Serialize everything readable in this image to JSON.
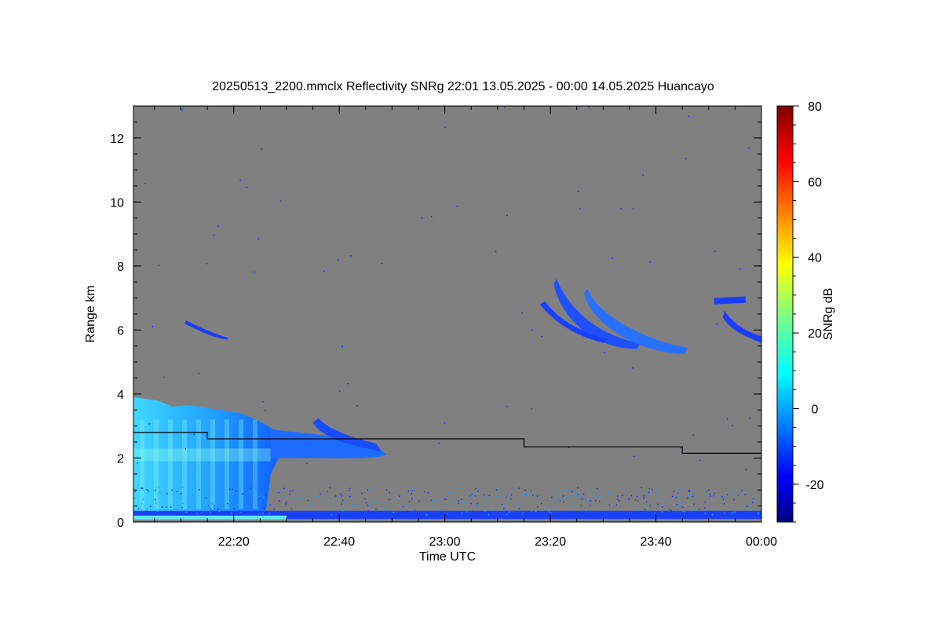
{
  "chart_data": {
    "type": "heatmap",
    "title": "20250513_2200.mmclx Reflectivity SNRg   22:01 13.05.2025 - 00:00 14.05.2025 Huancayo",
    "xlabel": "Time UTC",
    "ylabel": "Range km",
    "xlim": [
      "22:01",
      "00:00"
    ],
    "ylim": [
      0,
      13
    ],
    "x_ticks": [
      "22:20",
      "22:40",
      "23:00",
      "23:20",
      "23:40",
      "00:00"
    ],
    "y_ticks": [
      "0",
      "2",
      "4",
      "6",
      "8",
      "10",
      "12"
    ],
    "background_color": "#808080",
    "colorbar": {
      "label": "SNRg dB",
      "range": [
        -30,
        80
      ],
      "ticks": [
        "-20",
        "0",
        "20",
        "40",
        "60",
        "80"
      ],
      "colormap": "jet"
    },
    "boundary_line": {
      "color": "#000000",
      "steps": [
        {
          "from": "22:01",
          "to": "22:15",
          "height_km": 2.8
        },
        {
          "from": "22:15",
          "to": "23:15",
          "height_km": 2.6
        },
        {
          "from": "23:15",
          "to": "23:45",
          "height_km": 2.35
        },
        {
          "from": "23:45",
          "to": "00:00",
          "height_km": 2.15
        }
      ]
    },
    "features": [
      {
        "name": "low-cloud-block",
        "time_start": "22:01",
        "time_end": "22:27",
        "range_km": [
          0.1,
          3.9
        ],
        "snr_db": [
          -15,
          15
        ]
      },
      {
        "name": "cloud-tail",
        "time_start": "22:27",
        "time_end": "22:49",
        "range_km": [
          1.8,
          2.8
        ],
        "snr_db": [
          -20,
          0
        ]
      },
      {
        "name": "cirrus-22:12",
        "time_start": "22:11",
        "time_end": "22:19",
        "range_km": [
          5.7,
          6.3
        ],
        "snr_db": [
          -25,
          -15
        ]
      },
      {
        "name": "cirrus-23:20",
        "time_start": "23:19",
        "time_end": "23:37",
        "range_km": [
          5.4,
          7.6
        ],
        "snr_db": [
          -22,
          -10
        ]
      },
      {
        "name": "cirrus-23:28",
        "time_start": "23:27",
        "time_end": "23:46",
        "range_km": [
          5.3,
          7.3
        ],
        "snr_db": [
          -22,
          -8
        ]
      },
      {
        "name": "cirrus-23:55",
        "time_start": "23:53",
        "time_end": "00:00",
        "range_km": [
          5.5,
          6.6
        ],
        "snr_db": [
          -25,
          -15
        ]
      },
      {
        "name": "ground-clutter",
        "time_start": "22:01",
        "time_end": "00:00",
        "range_km": [
          0.1,
          0.35
        ],
        "snr_db": [
          -10,
          10
        ]
      }
    ]
  }
}
